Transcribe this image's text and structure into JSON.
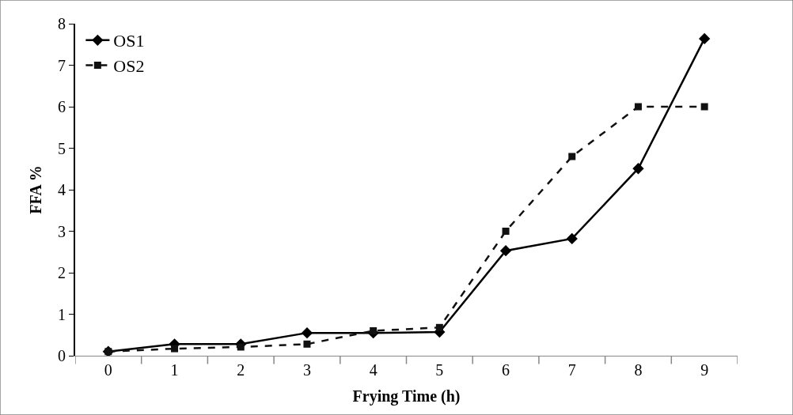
{
  "chart_data": {
    "type": "line",
    "xlabel": "Frying Time (h)",
    "ylabel": "FFA %",
    "categories": [
      "0",
      "1",
      "2",
      "3",
      "4",
      "5",
      "6",
      "7",
      "8",
      "9"
    ],
    "series": [
      {
        "name": "OS1",
        "color": "#000000",
        "marker": "diamond",
        "line_style": "solid",
        "values": [
          0.1,
          0.28,
          0.28,
          0.55,
          0.55,
          0.57,
          2.53,
          2.82,
          4.51,
          7.64
        ]
      },
      {
        "name": "OS2",
        "color": "#111111",
        "marker": "square",
        "line_style": "dashed",
        "values": [
          0.1,
          0.17,
          0.21,
          0.28,
          0.6,
          0.68,
          3.0,
          4.8,
          6.0,
          6.0
        ]
      }
    ],
    "ylim": [
      0,
      8
    ],
    "yticks": [
      0,
      1,
      2,
      3,
      4,
      5,
      6,
      7,
      8
    ],
    "legend": "top left"
  }
}
